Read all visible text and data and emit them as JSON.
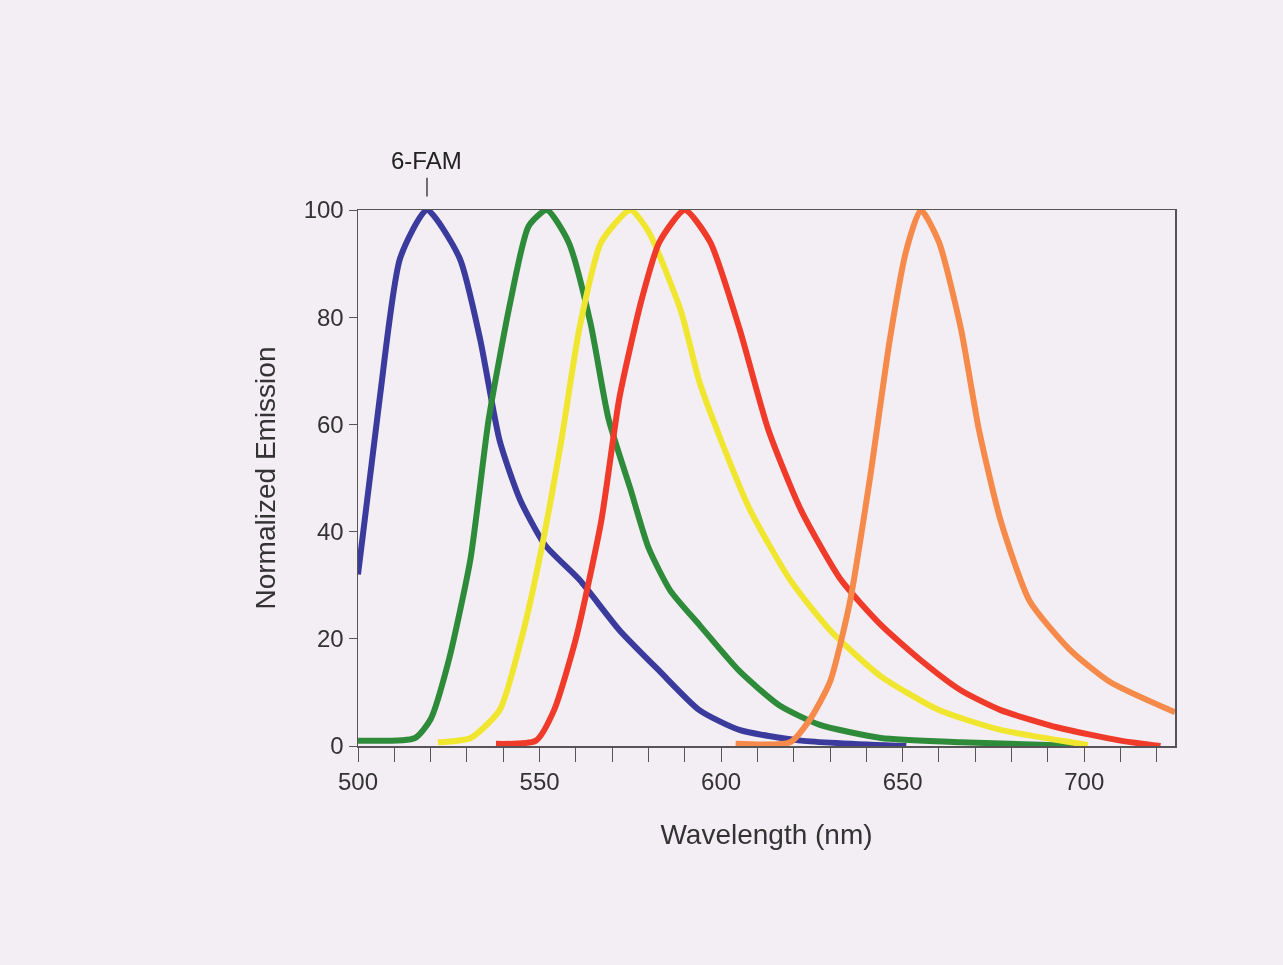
{
  "chart_data": {
    "type": "line",
    "xlabel": "Wavelength (nm)",
    "ylabel": "Normalized Emission",
    "xlim": [
      500,
      725
    ],
    "ylim": [
      0,
      100
    ],
    "xticks": [
      500,
      {
        "value": 510,
        "label": null
      },
      {
        "value": 520,
        "label": null
      },
      {
        "value": 530,
        "label": null
      },
      {
        "value": 540,
        "label": null
      },
      550,
      {
        "value": 560,
        "label": null
      },
      {
        "value": 570,
        "label": null
      },
      {
        "value": 580,
        "label": null
      },
      {
        "value": 590,
        "label": null
      },
      600,
      {
        "value": 610,
        "label": null
      },
      {
        "value": 620,
        "label": null
      },
      {
        "value": 630,
        "label": null
      },
      {
        "value": 640,
        "label": null
      },
      650,
      {
        "value": 660,
        "label": null
      },
      {
        "value": 670,
        "label": null
      },
      {
        "value": 680,
        "label": null
      },
      {
        "value": 690,
        "label": null
      },
      700,
      {
        "value": 710,
        "label": null
      },
      {
        "value": 720,
        "label": null
      }
    ],
    "yticks": [
      0,
      20,
      40,
      60,
      80,
      100
    ],
    "grid": false,
    "legend": false,
    "marker": "none",
    "line_style": "solid",
    "series": [
      {
        "name": "6-FAM",
        "color": "#3b3b9e",
        "x": [
          500,
          506,
          511.6,
          519,
          528,
          533.6,
          539,
          544.6,
          551.5,
          561,
          572,
          583,
          594,
          605,
          622,
          651
        ],
        "values": [
          32,
          65,
          91,
          100,
          91,
          76,
          57,
          46,
          37.5,
          31,
          21.6,
          14,
          6.7,
          3,
          1,
          0
        ]
      },
      {
        "color": "#2e8b3a",
        "x": [
          500,
          515.7,
          520,
          525,
          531,
          536,
          542,
          547,
          552,
          558,
          564,
          569,
          575,
          580,
          586,
          594,
          605,
          616,
          627,
          644,
          666,
          699
        ],
        "values": [
          1,
          1.5,
          5,
          16,
          35,
          61,
          83,
          97,
          100,
          94,
          79,
          61,
          48,
          37,
          29,
          22.6,
          14,
          7.6,
          4,
          1.5,
          0.7,
          0
        ]
      },
      {
        "color": "#f0e630",
        "x": [
          522,
          531,
          539,
          545,
          550,
          556,
          561,
          567,
          575,
          580,
          589,
          594,
          600,
          608,
          619,
          630,
          644,
          660,
          677,
          701
        ],
        "values": [
          0.7,
          1.5,
          6.7,
          20,
          35,
          57,
          78,
          94,
          100,
          96,
          81,
          68,
          57,
          44,
          31,
          21.6,
          13,
          6.7,
          3,
          0.2
        ]
      },
      {
        "color": "#f03a2a",
        "x": [
          538,
          549,
          554,
          560,
          567,
          572,
          578,
          583,
          590,
          597,
          605,
          613,
          622,
          633,
          644,
          655,
          666,
          677,
          693,
          710,
          721
        ],
        "values": [
          0.4,
          1,
          6.7,
          20,
          42,
          65,
          83,
          94,
          100,
          94,
          78,
          59,
          44,
          31,
          22.6,
          16,
          10.4,
          6.7,
          3.4,
          1,
          0
        ]
      },
      {
        "color": "#f58a4a",
        "x": [
          604,
          619,
          624.5,
          630,
          635.5,
          641,
          646.5,
          651,
          655,
          660,
          666,
          671,
          677,
          685,
          696,
          707,
          725
        ],
        "values": [
          0.4,
          0.7,
          5,
          12,
          27,
          50,
          76,
          92.5,
          100,
          94,
          78,
          59,
          42,
          27,
          18,
          12,
          6.3
        ]
      }
    ]
  }
}
